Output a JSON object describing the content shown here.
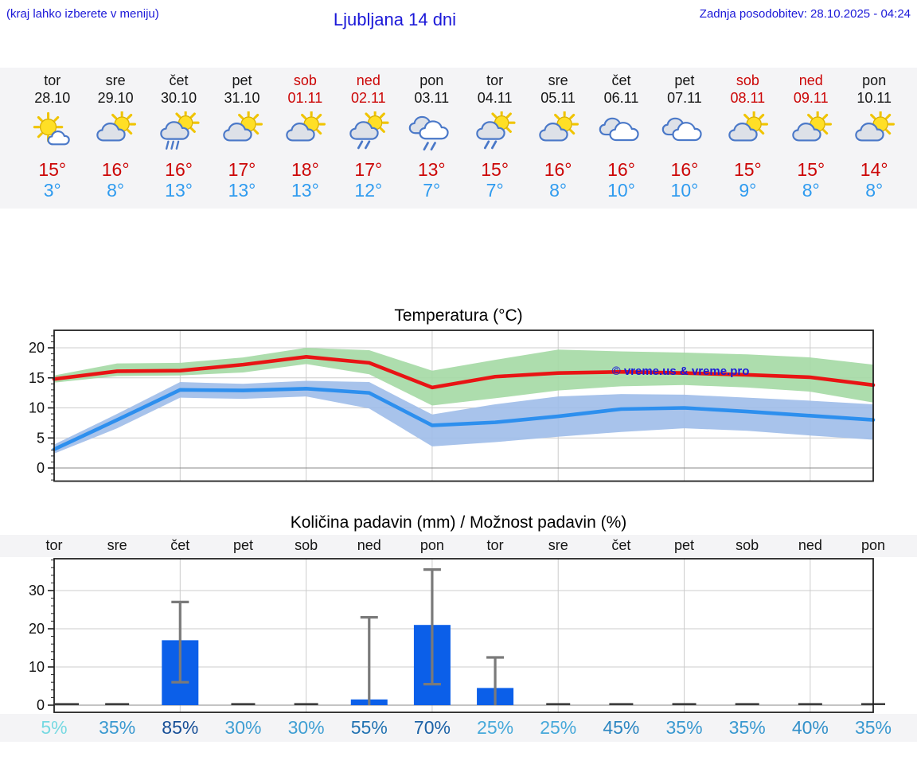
{
  "header": {
    "hint": "(kraj lahko izberete v meniju)",
    "title": "Ljubljana 14 dni",
    "updated": "Zadnja posodobitev: 28.10.2025 - 04:24"
  },
  "colors": {
    "accent_blue": "#1b18d8",
    "high_red": "#cc0606",
    "low_blue": "#2f9bef",
    "line_red": "#e81414",
    "line_blue": "#2d8fee",
    "band_green": "#a4d9a4",
    "band_blue": "#9fbde9",
    "bar_blue": "#0b5fe9",
    "error_gray": "#7a7a7a",
    "grid": "#cccccc",
    "zero_line": "#888888",
    "strip_bg": "#f4f4f6"
  },
  "days": [
    {
      "name": "tor",
      "date": "28.10",
      "weekend": false,
      "icon": "sun-cloud",
      "high": "15°",
      "low": "3°"
    },
    {
      "name": "sre",
      "date": "29.10",
      "weekend": false,
      "icon": "cloud-sun",
      "high": "16°",
      "low": "8°"
    },
    {
      "name": "čet",
      "date": "30.10",
      "weekend": false,
      "icon": "cloud-sun-rain",
      "high": "16°",
      "low": "13°"
    },
    {
      "name": "pet",
      "date": "31.10",
      "weekend": false,
      "icon": "cloud-sun",
      "high": "17°",
      "low": "13°"
    },
    {
      "name": "sob",
      "date": "01.11",
      "weekend": true,
      "icon": "cloud-sun",
      "high": "18°",
      "low": "13°"
    },
    {
      "name": "ned",
      "date": "02.11",
      "weekend": true,
      "icon": "cloud-sun-drizzle",
      "high": "17°",
      "low": "12°"
    },
    {
      "name": "pon",
      "date": "03.11",
      "weekend": false,
      "icon": "clouds-drizzle",
      "high": "13°",
      "low": "7°"
    },
    {
      "name": "tor",
      "date": "04.11",
      "weekend": false,
      "icon": "cloud-sun-drizzle",
      "high": "15°",
      "low": "7°"
    },
    {
      "name": "sre",
      "date": "05.11",
      "weekend": false,
      "icon": "cloud-sun",
      "high": "16°",
      "low": "8°"
    },
    {
      "name": "čet",
      "date": "06.11",
      "weekend": false,
      "icon": "clouds",
      "high": "16°",
      "low": "10°"
    },
    {
      "name": "pet",
      "date": "07.11",
      "weekend": false,
      "icon": "clouds",
      "high": "16°",
      "low": "10°"
    },
    {
      "name": "sob",
      "date": "08.11",
      "weekend": true,
      "icon": "cloud-sun",
      "high": "15°",
      "low": "9°"
    },
    {
      "name": "ned",
      "date": "09.11",
      "weekend": true,
      "icon": "cloud-sun",
      "high": "15°",
      "low": "8°"
    },
    {
      "name": "pon",
      "date": "10.11",
      "weekend": false,
      "icon": "cloud-sun",
      "high": "14°",
      "low": "8°"
    }
  ],
  "chart_data": [
    {
      "type": "line",
      "title": "Temperatura (°C)",
      "watermark": "© vreme.us & vreme.pro",
      "categories": [
        "tor 28.10",
        "sre 29.10",
        "čet 30.10",
        "pet 31.10",
        "sob 01.11",
        "ned 02.11",
        "pon 03.11",
        "tor 04.11",
        "sre 05.11",
        "čet 06.11",
        "pet 07.11",
        "sob 08.11",
        "ned 09.11",
        "pon 10.11"
      ],
      "yticks": [
        0,
        5,
        10,
        15,
        20
      ],
      "ylim": [
        -2.5,
        22.6
      ],
      "grid": true,
      "series": [
        {
          "name": "Max temperatura razpon",
          "role": "band",
          "color": "#a4d9a4",
          "upper": [
            15.4,
            17.4,
            17.5,
            18.4,
            20.0,
            19.6,
            16.2,
            18.0,
            19.7,
            19.4,
            19.2,
            18.9,
            18.4,
            17.2
          ],
          "lower": [
            14.2,
            15.3,
            15.4,
            15.9,
            17.3,
            15.6,
            10.4,
            11.6,
            12.9,
            13.6,
            13.8,
            13.4,
            12.7,
            10.9
          ]
        },
        {
          "name": "Min temperatura razpon",
          "role": "band",
          "color": "#9fbde9",
          "upper": [
            3.9,
            9.0,
            14.3,
            14.0,
            14.5,
            14.3,
            8.9,
            10.6,
            11.9,
            12.3,
            12.2,
            11.7,
            11.2,
            10.6
          ],
          "lower": [
            2.4,
            6.6,
            11.7,
            11.5,
            11.9,
            9.9,
            3.6,
            4.3,
            5.2,
            6.0,
            6.6,
            6.2,
            5.4,
            4.7
          ]
        },
        {
          "name": "Max temperatura",
          "role": "line",
          "color": "#e81414",
          "values": [
            14.8,
            16.1,
            16.2,
            17.2,
            18.5,
            17.5,
            13.4,
            15.2,
            15.8,
            16.0,
            15.8,
            15.5,
            15.1,
            13.8
          ]
        },
        {
          "name": "Min temperatura",
          "role": "line",
          "color": "#2d8fee",
          "values": [
            3.1,
            8.0,
            13.0,
            12.9,
            13.2,
            12.5,
            7.1,
            7.6,
            8.6,
            9.8,
            10.0,
            9.4,
            8.7,
            8.0
          ]
        }
      ]
    },
    {
      "type": "bar",
      "title": "Količina padavin (mm) / Možnost padavin (%)",
      "categories": [
        "tor",
        "sre",
        "čet",
        "pet",
        "sob",
        "ned",
        "pon",
        "tor",
        "sre",
        "čet",
        "pet",
        "sob",
        "ned",
        "pon"
      ],
      "yticks": [
        0,
        10,
        20,
        30
      ],
      "ylim": [
        -1.9,
        38.3
      ],
      "grid": true,
      "values": [
        0.1,
        0.2,
        17,
        0.1,
        0.1,
        1.5,
        21,
        4.5,
        0.1,
        0.2,
        0.2,
        0.2,
        0.3,
        0.2
      ],
      "error_low": [
        0,
        0,
        6,
        0,
        0,
        0,
        5.5,
        0,
        0,
        0,
        0,
        0,
        0,
        0
      ],
      "error_high": [
        0,
        0,
        27,
        0,
        0,
        23,
        35.5,
        12.5,
        0,
        0,
        0,
        0,
        0,
        0
      ],
      "probabilities": [
        "5%",
        "35%",
        "85%",
        "30%",
        "30%",
        "55%",
        "70%",
        "25%",
        "25%",
        "45%",
        "35%",
        "35%",
        "40%",
        "35%"
      ],
      "prob_colors": [
        "#76d9e2",
        "#3a99d0",
        "#174f97",
        "#409fd3",
        "#409fd3",
        "#2273b2",
        "#1b61a6",
        "#47a9da",
        "#47a9da",
        "#2c86c1",
        "#3a99d0",
        "#3a99d0",
        "#3390c9",
        "#3a99d0"
      ]
    }
  ]
}
